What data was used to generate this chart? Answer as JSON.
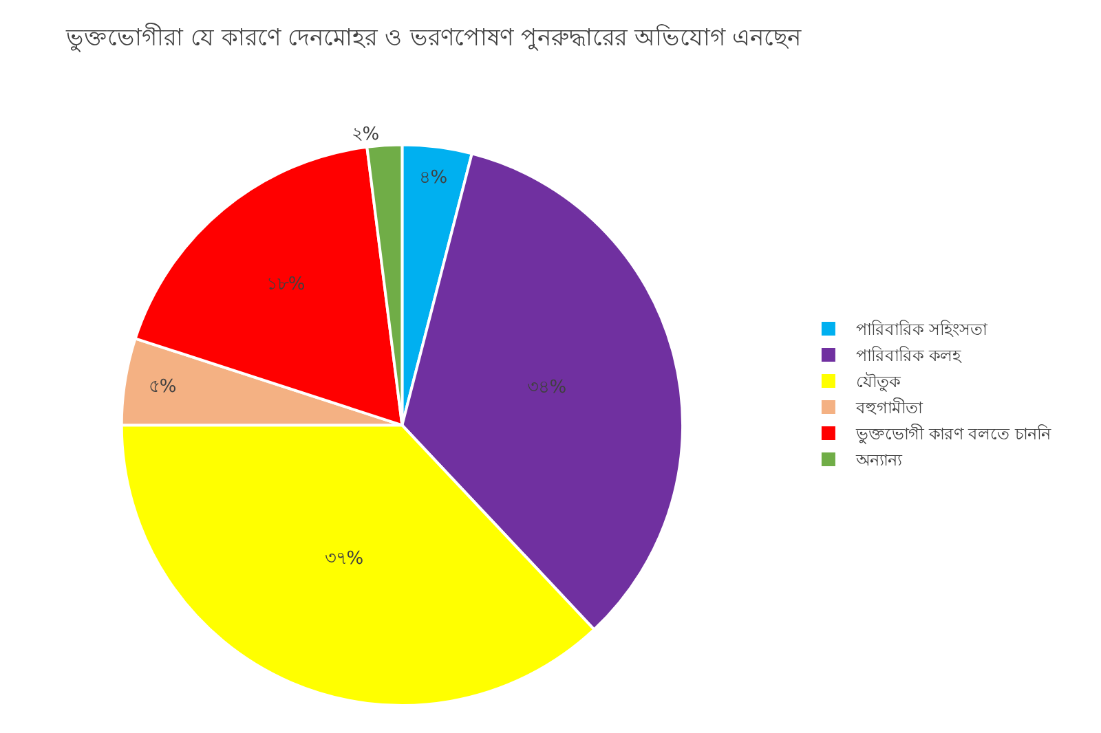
{
  "chart_data": {
    "type": "pie",
    "title": "ভুক্তভোগীরা যে কারণে দেনমোহর ও ভরণপোষণ পুনরুদ্ধারের অভিযোগ এনছেন",
    "categories": [
      "পারিবারিক সহিংসতা",
      "পারিবারিক কলহ",
      "যৌতুক",
      "বহুগামীতা",
      "ভুক্তভোগী কারণ বলতে চাননি",
      "অন্যান্য"
    ],
    "values": [
      4,
      34,
      37,
      5,
      18,
      2
    ],
    "colors": [
      "#00b0f0",
      "#7030a0",
      "#ffff00",
      "#f4b183",
      "#ff0000",
      "#70ad47"
    ],
    "value_labels": [
      "৪%",
      "৩৪%",
      "৩৭%",
      "৫%",
      "১৮%",
      "২%"
    ],
    "legend": "right"
  }
}
